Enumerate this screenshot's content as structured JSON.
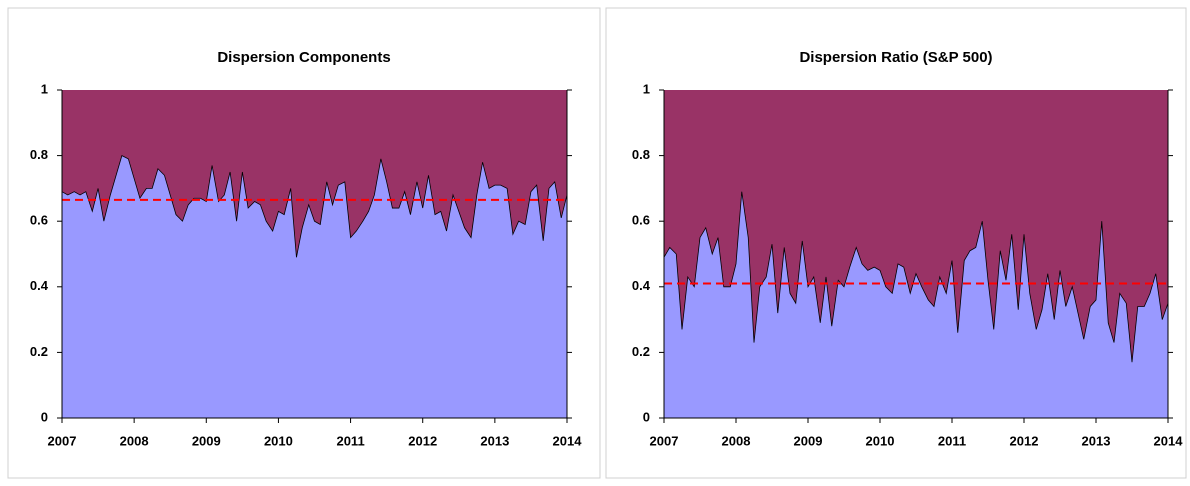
{
  "chart_data": [
    {
      "type": "area",
      "title": "Dispersion Components",
      "x": [
        2007.0,
        2007.08,
        2007.17,
        2007.25,
        2007.33,
        2007.42,
        2007.5,
        2007.58,
        2007.67,
        2007.75,
        2007.83,
        2007.92,
        2008.0,
        2008.08,
        2008.17,
        2008.25,
        2008.33,
        2008.42,
        2008.5,
        2008.58,
        2008.67,
        2008.75,
        2008.83,
        2008.92,
        2009.0,
        2009.08,
        2009.17,
        2009.25,
        2009.33,
        2009.42,
        2009.5,
        2009.58,
        2009.67,
        2009.75,
        2009.83,
        2009.92,
        2010.0,
        2010.08,
        2010.17,
        2010.25,
        2010.33,
        2010.42,
        2010.5,
        2010.58,
        2010.67,
        2010.75,
        2010.83,
        2010.92,
        2011.0,
        2011.08,
        2011.17,
        2011.25,
        2011.33,
        2011.42,
        2011.5,
        2011.58,
        2011.67,
        2011.75,
        2011.83,
        2011.92,
        2012.0,
        2012.08,
        2012.17,
        2012.25,
        2012.33,
        2012.42,
        2012.5,
        2012.58,
        2012.67,
        2012.75,
        2012.83,
        2012.92,
        2013.0,
        2013.08,
        2013.17,
        2013.25,
        2013.33,
        2013.42,
        2013.5,
        2013.58,
        2013.67,
        2013.75,
        2013.83,
        2013.92,
        2014.0
      ],
      "values": [
        0.69,
        0.68,
        0.69,
        0.68,
        0.69,
        0.63,
        0.7,
        0.6,
        0.68,
        0.74,
        0.8,
        0.79,
        0.73,
        0.67,
        0.7,
        0.7,
        0.76,
        0.74,
        0.68,
        0.62,
        0.6,
        0.65,
        0.67,
        0.67,
        0.66,
        0.77,
        0.66,
        0.68,
        0.75,
        0.6,
        0.75,
        0.64,
        0.66,
        0.65,
        0.6,
        0.57,
        0.63,
        0.62,
        0.7,
        0.49,
        0.58,
        0.65,
        0.6,
        0.59,
        0.72,
        0.65,
        0.71,
        0.72,
        0.55,
        0.57,
        0.6,
        0.63,
        0.68,
        0.79,
        0.72,
        0.64,
        0.64,
        0.69,
        0.62,
        0.72,
        0.64,
        0.74,
        0.62,
        0.63,
        0.57,
        0.68,
        0.63,
        0.58,
        0.55,
        0.68,
        0.78,
        0.7,
        0.71,
        0.71,
        0.7,
        0.56,
        0.6,
        0.59,
        0.69,
        0.71,
        0.54,
        0.7,
        0.72,
        0.61,
        0.68
      ],
      "color": "#9999ff",
      "background_color": "#993366",
      "mean_line": {
        "value": 0.665,
        "color": "#ff0000"
      },
      "xlim": [
        2007,
        2014
      ],
      "xticks": [
        2007,
        2008,
        2009,
        2010,
        2011,
        2012,
        2013,
        2014
      ],
      "ylim": [
        0,
        1
      ],
      "yticks": [
        0,
        0.2,
        0.4,
        0.6,
        0.8,
        1
      ]
    },
    {
      "type": "area",
      "title": "Dispersion Ratio (S&P 500)",
      "x": [
        2007.0,
        2007.08,
        2007.17,
        2007.25,
        2007.33,
        2007.42,
        2007.5,
        2007.58,
        2007.67,
        2007.75,
        2007.83,
        2007.92,
        2008.0,
        2008.08,
        2008.17,
        2008.25,
        2008.33,
        2008.42,
        2008.5,
        2008.58,
        2008.67,
        2008.75,
        2008.83,
        2008.92,
        2009.0,
        2009.08,
        2009.17,
        2009.25,
        2009.33,
        2009.42,
        2009.5,
        2009.58,
        2009.67,
        2009.75,
        2009.83,
        2009.92,
        2010.0,
        2010.08,
        2010.17,
        2010.25,
        2010.33,
        2010.42,
        2010.5,
        2010.58,
        2010.67,
        2010.75,
        2010.83,
        2010.92,
        2011.0,
        2011.08,
        2011.17,
        2011.25,
        2011.33,
        2011.42,
        2011.5,
        2011.58,
        2011.67,
        2011.75,
        2011.83,
        2011.92,
        2012.0,
        2012.08,
        2012.17,
        2012.25,
        2012.33,
        2012.42,
        2012.5,
        2012.58,
        2012.67,
        2012.75,
        2012.83,
        2012.92,
        2013.0,
        2013.08,
        2013.17,
        2013.25,
        2013.33,
        2013.42,
        2013.5,
        2013.58,
        2013.67,
        2013.75,
        2013.83,
        2013.92,
        2014.0
      ],
      "values": [
        0.49,
        0.52,
        0.5,
        0.27,
        0.43,
        0.4,
        0.55,
        0.58,
        0.5,
        0.55,
        0.4,
        0.4,
        0.47,
        0.69,
        0.55,
        0.23,
        0.4,
        0.43,
        0.53,
        0.32,
        0.52,
        0.38,
        0.35,
        0.54,
        0.4,
        0.43,
        0.29,
        0.43,
        0.28,
        0.42,
        0.4,
        0.46,
        0.52,
        0.47,
        0.45,
        0.46,
        0.45,
        0.4,
        0.38,
        0.47,
        0.46,
        0.38,
        0.44,
        0.4,
        0.36,
        0.34,
        0.43,
        0.38,
        0.48,
        0.26,
        0.48,
        0.51,
        0.52,
        0.6,
        0.42,
        0.27,
        0.51,
        0.42,
        0.56,
        0.33,
        0.56,
        0.38,
        0.27,
        0.33,
        0.44,
        0.3,
        0.45,
        0.34,
        0.4,
        0.32,
        0.24,
        0.34,
        0.36,
        0.6,
        0.29,
        0.23,
        0.38,
        0.35,
        0.17,
        0.34,
        0.34,
        0.38,
        0.44,
        0.3,
        0.35
      ],
      "color": "#9999ff",
      "background_color": "#993366",
      "mean_line": {
        "value": 0.41,
        "color": "#ff0000"
      },
      "xlim": [
        2007,
        2014
      ],
      "xticks": [
        2007,
        2008,
        2009,
        2010,
        2011,
        2012,
        2013,
        2014
      ],
      "ylim": [
        0,
        1
      ],
      "yticks": [
        0,
        0.2,
        0.4,
        0.6,
        0.8,
        1
      ]
    }
  ]
}
